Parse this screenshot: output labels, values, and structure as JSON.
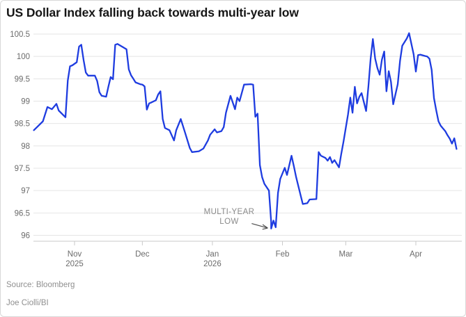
{
  "header": {
    "title": "US Dollar Index falling back towards multi-year low"
  },
  "annotation": {
    "line1": "MULTI-YEAR",
    "line2": "LOW"
  },
  "footer": {
    "source": "Source: Bloomberg",
    "byline": "Joe Ciolli/BI"
  },
  "colors": {
    "line": "#1e3ce0",
    "grid": "#e4e4e4",
    "axis": "#c9c9c9",
    "tick_label": "#6b6b6b",
    "title": "#161616",
    "annotation_text": "#8a8a8a",
    "arrow": "#4d4d4d",
    "source_text": "#8f8f8f",
    "background": "#ffffff"
  },
  "chart_data": {
    "type": "line",
    "title": "US Dollar Index falling back towards multi-year low",
    "xlabel": "",
    "ylabel": "",
    "ylim": [
      96,
      100.5
    ],
    "grid": "horizontal",
    "legend": "none",
    "y_ticks": [
      100.5,
      100,
      99.5,
      99,
      98.5,
      98,
      97.5,
      97,
      96.5,
      96
    ],
    "x_ticks": [
      {
        "date": "2025-11-01",
        "label": "Nov",
        "sublabel": "2025"
      },
      {
        "date": "2025-12-01",
        "label": "Dec",
        "sublabel": ""
      },
      {
        "date": "2026-01-01",
        "label": "Jan",
        "sublabel": "2026"
      },
      {
        "date": "2026-02-01",
        "label": "Feb",
        "sublabel": ""
      },
      {
        "date": "2026-03-01",
        "label": "Mar",
        "sublabel": ""
      },
      {
        "date": "2026-04-01",
        "label": "Apr",
        "sublabel": ""
      }
    ],
    "annotation": {
      "text": "MULTI-YEAR LOW",
      "target": [
        "2026-01-27",
        96.15
      ]
    },
    "series": [
      {
        "name": "US Dollar Index",
        "points": [
          [
            "2025-10-14",
            98.35
          ],
          [
            "2025-10-16",
            98.45
          ],
          [
            "2025-10-18",
            98.55
          ],
          [
            "2025-10-20",
            98.87
          ],
          [
            "2025-10-22",
            98.82
          ],
          [
            "2025-10-24",
            98.94
          ],
          [
            "2025-10-25",
            98.79
          ],
          [
            "2025-10-28",
            98.64
          ],
          [
            "2025-10-29",
            99.46
          ],
          [
            "2025-10-30",
            99.78
          ],
          [
            "2025-10-31",
            99.8
          ],
          [
            "2025-11-02",
            99.87
          ],
          [
            "2025-11-03",
            100.22
          ],
          [
            "2025-11-04",
            100.26
          ],
          [
            "2025-11-05",
            99.92
          ],
          [
            "2025-11-06",
            99.64
          ],
          [
            "2025-11-07",
            99.57
          ],
          [
            "2025-11-10",
            99.57
          ],
          [
            "2025-11-11",
            99.45
          ],
          [
            "2025-11-12",
            99.2
          ],
          [
            "2025-11-13",
            99.12
          ],
          [
            "2025-11-15",
            99.1
          ],
          [
            "2025-11-16",
            99.33
          ],
          [
            "2025-11-17",
            99.54
          ],
          [
            "2025-11-18",
            99.49
          ],
          [
            "2025-11-19",
            100.26
          ],
          [
            "2025-11-20",
            100.28
          ],
          [
            "2025-11-22",
            100.22
          ],
          [
            "2025-11-24",
            100.16
          ],
          [
            "2025-11-25",
            99.71
          ],
          [
            "2025-11-26",
            99.58
          ],
          [
            "2025-11-27",
            99.5
          ],
          [
            "2025-11-28",
            99.42
          ],
          [
            "2025-11-30",
            99.38
          ],
          [
            "2025-12-01",
            99.37
          ],
          [
            "2025-12-02",
            99.33
          ],
          [
            "2025-12-03",
            98.81
          ],
          [
            "2025-12-04",
            98.95
          ],
          [
            "2025-12-05",
            98.97
          ],
          [
            "2025-12-07",
            99.02
          ],
          [
            "2025-12-08",
            99.15
          ],
          [
            "2025-12-09",
            99.22
          ],
          [
            "2025-12-10",
            98.6
          ],
          [
            "2025-12-11",
            98.4
          ],
          [
            "2025-12-13",
            98.35
          ],
          [
            "2025-12-15",
            98.12
          ],
          [
            "2025-12-16",
            98.35
          ],
          [
            "2025-12-18",
            98.6
          ],
          [
            "2025-12-20",
            98.28
          ],
          [
            "2025-12-22",
            97.95
          ],
          [
            "2025-12-23",
            97.86
          ],
          [
            "2025-12-26",
            97.88
          ],
          [
            "2025-12-28",
            97.94
          ],
          [
            "2025-12-30",
            98.12
          ],
          [
            "2025-12-31",
            98.25
          ],
          [
            "2026-01-02",
            98.37
          ],
          [
            "2026-01-03",
            98.3
          ],
          [
            "2026-01-05",
            98.33
          ],
          [
            "2026-01-06",
            98.42
          ],
          [
            "2026-01-07",
            98.74
          ],
          [
            "2026-01-09",
            99.12
          ],
          [
            "2026-01-11",
            98.82
          ],
          [
            "2026-01-12",
            99.08
          ],
          [
            "2026-01-13",
            99.0
          ],
          [
            "2026-01-15",
            99.37
          ],
          [
            "2026-01-18",
            99.38
          ],
          [
            "2026-01-19",
            99.37
          ],
          [
            "2026-01-20",
            98.65
          ],
          [
            "2026-01-21",
            98.72
          ],
          [
            "2026-01-22",
            97.57
          ],
          [
            "2026-01-23",
            97.3
          ],
          [
            "2026-01-24",
            97.15
          ],
          [
            "2026-01-26",
            97.0
          ],
          [
            "2026-01-27",
            96.3
          ],
          [
            "2026-01-27",
            96.15
          ],
          [
            "2026-01-28",
            96.33
          ],
          [
            "2026-01-29",
            96.18
          ],
          [
            "2026-01-30",
            96.95
          ],
          [
            "2026-01-31",
            97.26
          ],
          [
            "2026-02-02",
            97.51
          ],
          [
            "2026-02-03",
            97.35
          ],
          [
            "2026-02-05",
            97.78
          ],
          [
            "2026-02-06",
            97.55
          ],
          [
            "2026-02-07",
            97.31
          ],
          [
            "2026-02-09",
            96.9
          ],
          [
            "2026-02-10",
            96.7
          ],
          [
            "2026-02-12",
            96.72
          ],
          [
            "2026-02-13",
            96.8
          ],
          [
            "2026-02-16",
            96.81
          ],
          [
            "2026-02-17",
            97.86
          ],
          [
            "2026-02-18",
            97.78
          ],
          [
            "2026-02-20",
            97.73
          ],
          [
            "2026-02-21",
            97.67
          ],
          [
            "2026-02-22",
            97.75
          ],
          [
            "2026-02-23",
            97.62
          ],
          [
            "2026-02-24",
            97.68
          ],
          [
            "2026-02-26",
            97.52
          ],
          [
            "2026-02-27",
            97.82
          ],
          [
            "2026-02-28",
            98.1
          ],
          [
            "2026-03-01",
            98.4
          ],
          [
            "2026-03-02",
            98.7
          ],
          [
            "2026-03-03",
            99.08
          ],
          [
            "2026-03-04",
            98.74
          ],
          [
            "2026-03-05",
            99.32
          ],
          [
            "2026-03-06",
            98.95
          ],
          [
            "2026-03-07",
            99.1
          ],
          [
            "2026-03-08",
            99.18
          ],
          [
            "2026-03-10",
            98.78
          ],
          [
            "2026-03-11",
            99.33
          ],
          [
            "2026-03-12",
            99.95
          ],
          [
            "2026-03-13",
            100.39
          ],
          [
            "2026-03-14",
            99.95
          ],
          [
            "2026-03-15",
            99.74
          ],
          [
            "2026-03-16",
            99.59
          ],
          [
            "2026-03-17",
            99.93
          ],
          [
            "2026-03-18",
            100.11
          ],
          [
            "2026-03-19",
            99.22
          ],
          [
            "2026-03-20",
            99.67
          ],
          [
            "2026-03-21",
            99.43
          ],
          [
            "2026-03-22",
            98.93
          ],
          [
            "2026-03-24",
            99.38
          ],
          [
            "2026-03-25",
            99.9
          ],
          [
            "2026-03-26",
            100.24
          ],
          [
            "2026-03-28",
            100.4
          ],
          [
            "2026-03-29",
            100.52
          ],
          [
            "2026-03-31",
            100.05
          ],
          [
            "2026-04-01",
            99.66
          ],
          [
            "2026-04-02",
            100.03
          ],
          [
            "2026-04-03",
            100.04
          ],
          [
            "2026-04-05",
            100.01
          ],
          [
            "2026-04-06",
            100.0
          ],
          [
            "2026-04-07",
            99.95
          ],
          [
            "2026-04-08",
            99.7
          ],
          [
            "2026-04-09",
            99.07
          ],
          [
            "2026-04-10",
            98.8
          ],
          [
            "2026-04-11",
            98.55
          ],
          [
            "2026-04-12",
            98.45
          ],
          [
            "2026-04-14",
            98.33
          ],
          [
            "2026-04-15",
            98.24
          ],
          [
            "2026-04-16",
            98.16
          ],
          [
            "2026-04-17",
            98.05
          ],
          [
            "2026-04-18",
            98.17
          ],
          [
            "2026-04-19",
            97.93
          ]
        ]
      }
    ]
  }
}
